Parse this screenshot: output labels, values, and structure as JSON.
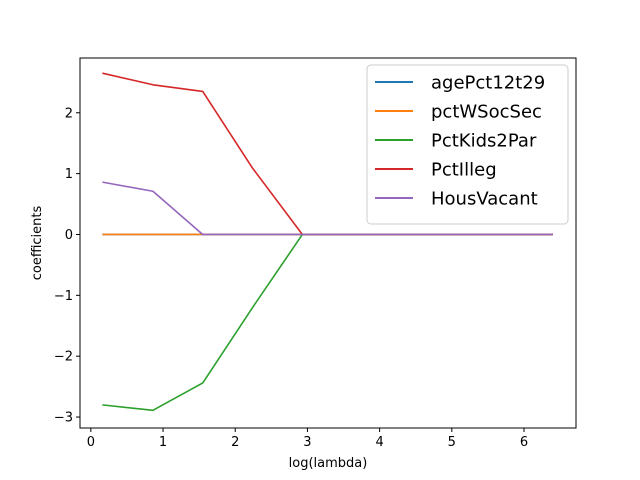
{
  "chart_data": {
    "type": "line",
    "xlabel": "log(lambda)",
    "ylabel": "coefficients",
    "xlim": [
      -0.15,
      6.72
    ],
    "ylim": [
      -3.18,
      2.9
    ],
    "xticks": [
      0,
      1,
      2,
      3,
      4,
      5,
      6
    ],
    "yticks": [
      -3,
      -2,
      -1,
      0,
      1,
      2
    ],
    "xtick_labels": [
      "0",
      "1",
      "2",
      "3",
      "4",
      "5",
      "6"
    ],
    "ytick_labels": [
      "−3",
      "−2",
      "−1",
      "0",
      "1",
      "2"
    ],
    "grid": false,
    "legend_position": "top-right",
    "x": [
      0.16,
      0.86,
      1.55,
      2.24,
      2.93,
      3.63,
      4.32,
      5.01,
      5.71,
      6.4
    ],
    "series": [
      {
        "name": "agePct12t29",
        "color": "#1f77b4",
        "values": [
          0,
          0,
          0,
          0,
          0,
          0,
          0,
          0,
          0,
          0
        ]
      },
      {
        "name": "pctWSocSec",
        "color": "#ff7f0e",
        "values": [
          0,
          0,
          0,
          0,
          0,
          0,
          0,
          0,
          0,
          0
        ]
      },
      {
        "name": "PctKids2Par",
        "color": "#2ca02c",
        "values": [
          -2.8,
          -2.89,
          -2.44,
          -1.2,
          0,
          0,
          0,
          0,
          0,
          0
        ]
      },
      {
        "name": "PctIlleg",
        "color": "#d62728",
        "values": [
          2.65,
          2.46,
          2.35,
          1.09,
          0,
          0,
          0,
          0,
          0,
          0
        ]
      },
      {
        "name": "HousVacant",
        "color": "#9467bd",
        "values": [
          0.86,
          0.71,
          0,
          0,
          0,
          0,
          0,
          0,
          0,
          0
        ]
      }
    ]
  }
}
